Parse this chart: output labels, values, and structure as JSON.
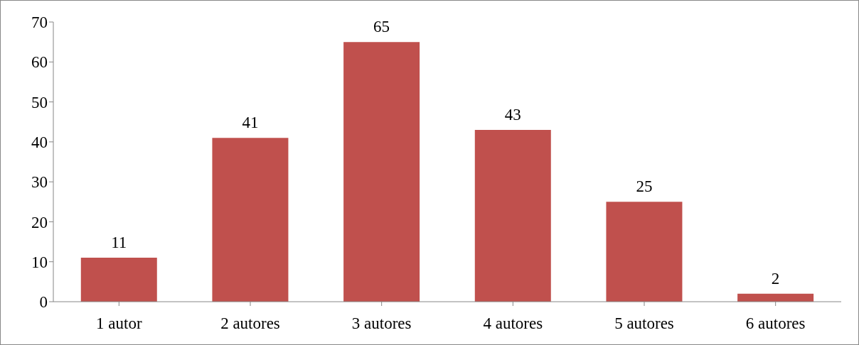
{
  "chart_data": {
    "type": "bar",
    "categories": [
      "1 autor",
      "2 autores",
      "3 autores",
      "4 autores",
      "5 autores",
      "6 autores"
    ],
    "values": [
      11,
      41,
      65,
      43,
      25,
      2
    ],
    "color": "#c0504d",
    "ylim": [
      0,
      70
    ],
    "yticks": [
      0,
      10,
      20,
      30,
      40,
      50,
      60,
      70
    ],
    "grid": false,
    "data_labels": true
  }
}
